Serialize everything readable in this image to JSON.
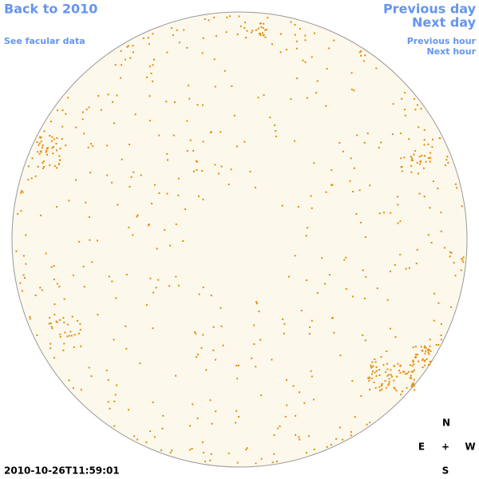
{
  "links": {
    "back": "Back to 2010",
    "facular": "See facular data",
    "previous_day": "Previous day",
    "next_day": "Next day",
    "previous_hour": "Previous hour",
    "next_hour": "Next hour"
  },
  "timestamp": "2010-10-26T11:59:01",
  "compass": {
    "north": "N",
    "east": "E",
    "center": "+",
    "west": "W",
    "south": "S"
  }
}
